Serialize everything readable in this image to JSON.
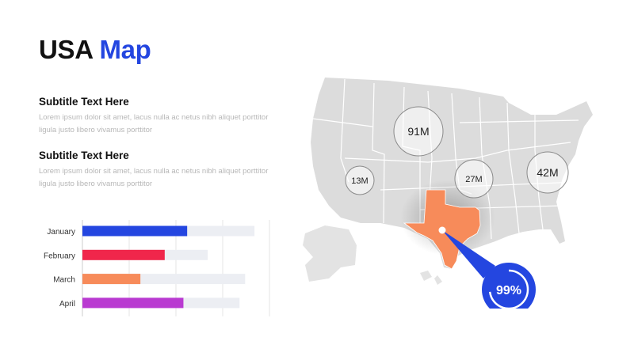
{
  "title": {
    "part1": "USA",
    "part2": "Map"
  },
  "blocks": [
    {
      "subtitle": "Subtitle  Text Here",
      "body": "Lorem ipsum dolor sit amet, lacus nulla ac netus nibh aliquet porttitor ligula justo libero vivamus porttitor"
    },
    {
      "subtitle": "Subtitle  Text Here",
      "body": "Lorem ipsum dolor sit amet, lacus nulla ac netus nibh aliquet porttitor ligula justo libero vivamus porttitor"
    }
  ],
  "chart_data": {
    "type": "bar",
    "orientation": "horizontal",
    "categories": [
      "January",
      "February",
      "March",
      "April"
    ],
    "series": [
      {
        "values": [
          56,
          44,
          31,
          54
        ]
      },
      {
        "values": [
          92,
          67,
          87,
          84
        ]
      }
    ],
    "xlim": [
      0,
      100
    ],
    "grid": true,
    "colors": [
      "#2446e0",
      "#f0264b",
      "#f78b5a",
      "#b93ad1"
    ],
    "track_color": "#eceef3"
  },
  "map": {
    "highlight_color": "#f78b5a",
    "base_color": "#dcdcdc",
    "callout": {
      "label": "99%",
      "color": "#2446e0"
    },
    "markers": [
      {
        "id": "west",
        "label": "13M"
      },
      {
        "id": "north",
        "label": "91M"
      },
      {
        "id": "central",
        "label": "27M"
      },
      {
        "id": "east",
        "label": "42M"
      }
    ]
  }
}
